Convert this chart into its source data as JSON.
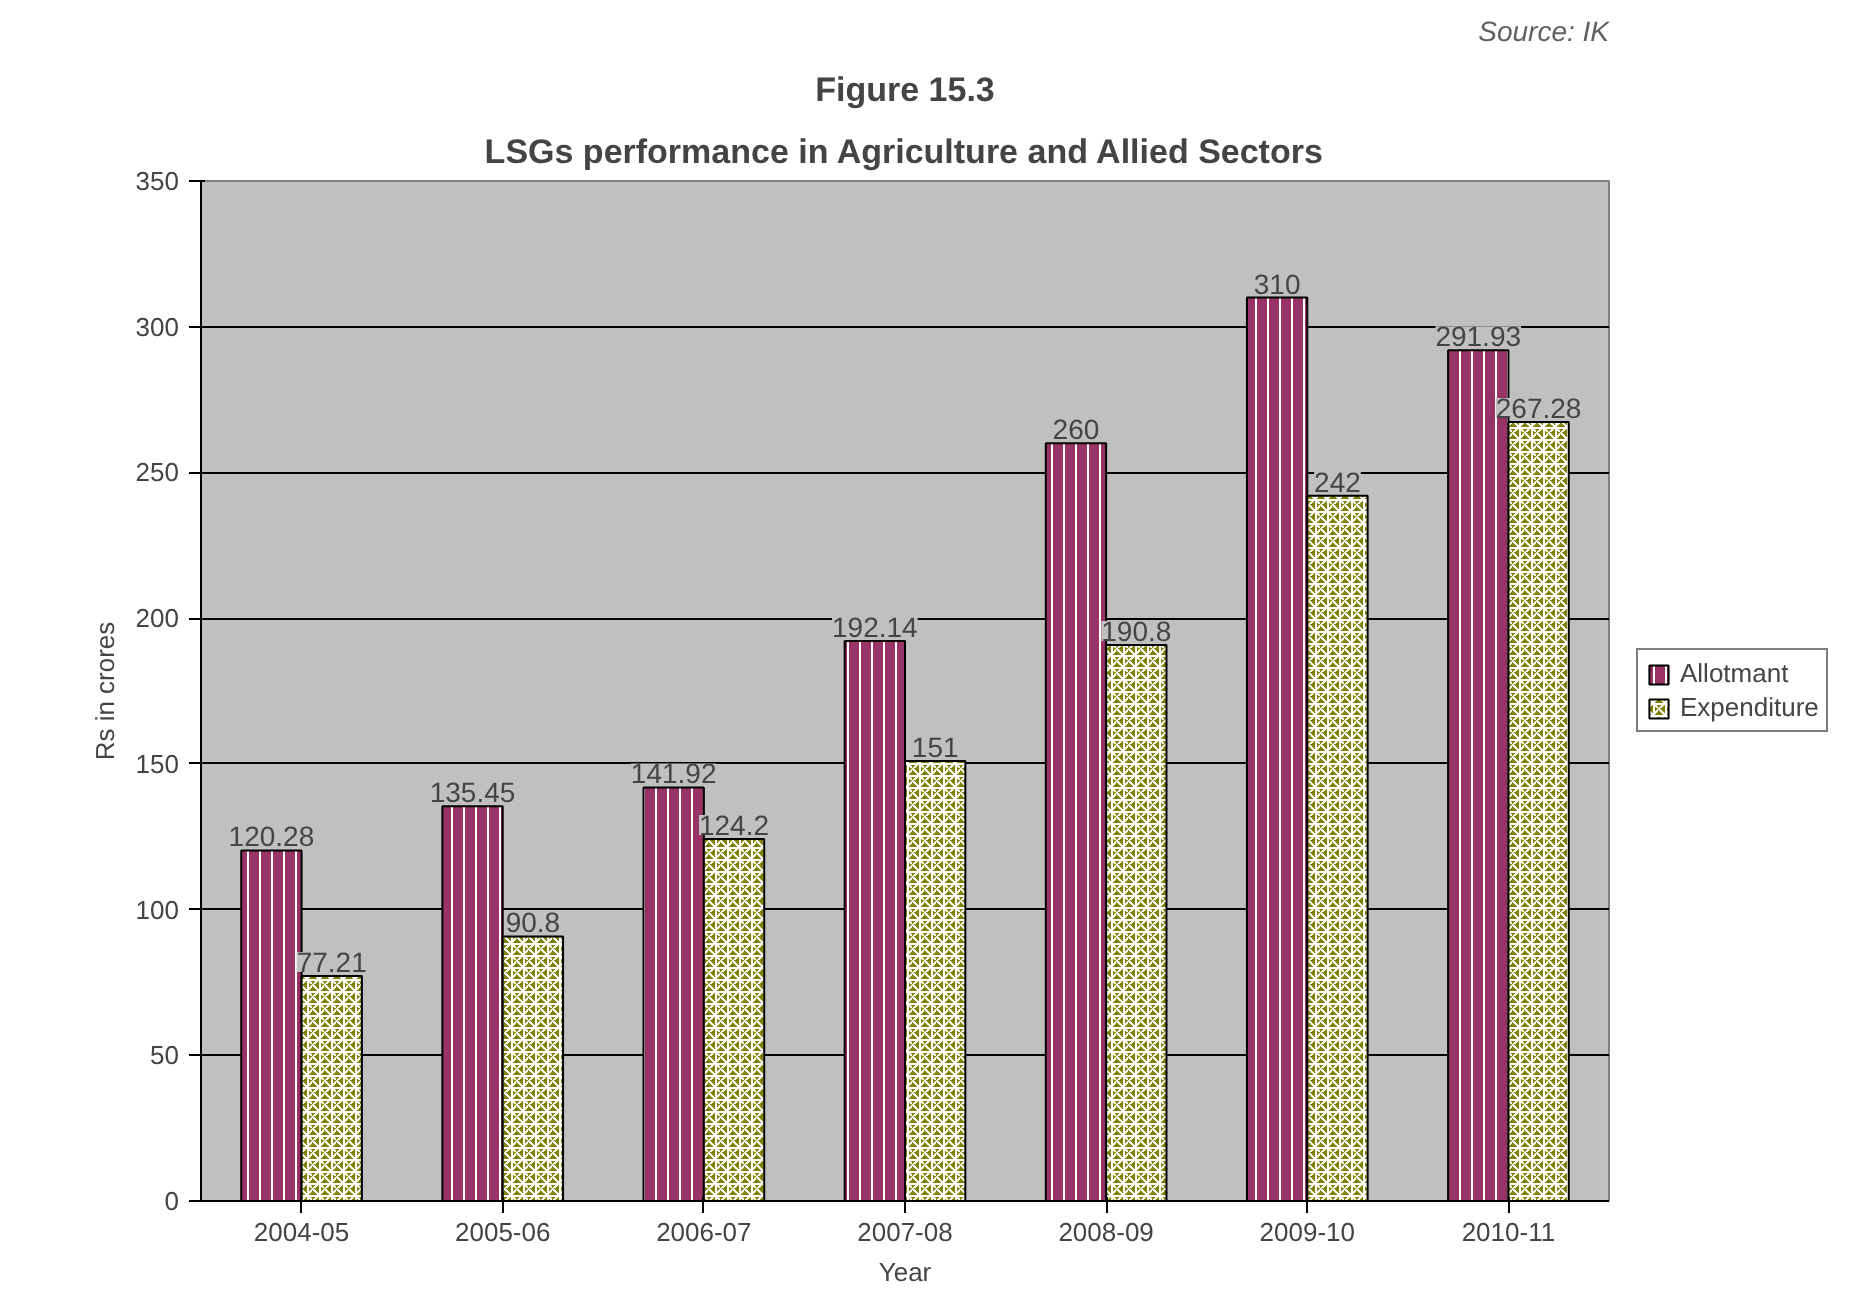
{
  "chart_data": {
    "type": "bar",
    "title": "Figure 15.3",
    "subtitle": "LSGs performance in Agriculture and Allied Sectors",
    "xlabel": "Year",
    "ylabel": "Rs in crores",
    "categories": [
      "2004-05",
      "2005-06",
      "2006-07",
      "2007-08",
      "2008-09",
      "2009-10",
      "2010-11"
    ],
    "series": [
      {
        "name": "Allotmant",
        "color": "#993366",
        "values": [
          120.28,
          135.45,
          141.92,
          192.14,
          260,
          310,
          291.93
        ]
      },
      {
        "name": "Expenditure",
        "color": "#808000",
        "values": [
          77.21,
          90.8,
          124.2,
          151,
          190.8,
          242,
          267.28
        ]
      }
    ],
    "ylim": [
      0,
      350
    ],
    "yticks": [
      0,
      50,
      100,
      150,
      200,
      250,
      300,
      350
    ],
    "grid": "y",
    "legend": "right",
    "data_labels": true,
    "annotations": [
      "Source: IK"
    ]
  }
}
